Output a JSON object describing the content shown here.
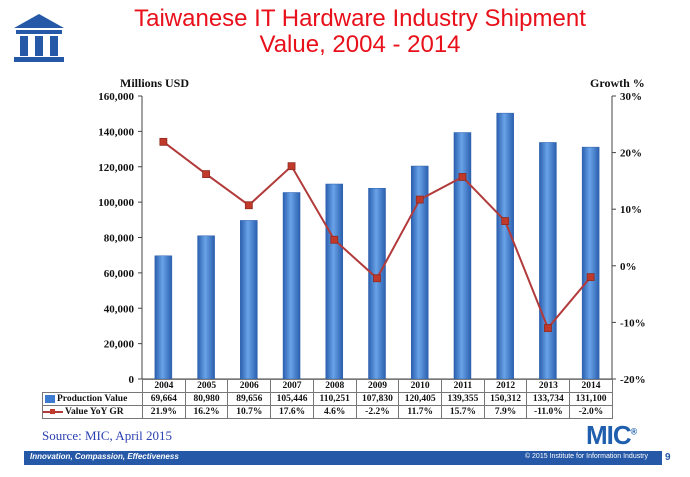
{
  "title_line1": "Taiwanese IT Hardware Industry Shipment",
  "title_line2": "Value, 2004 - 2014",
  "source": "Source: MIC, April 2015",
  "brand": "MIC",
  "brand_mark": "®",
  "footer": {
    "tagline": "Innovation, Compassion, Effectiveness",
    "copyright": "© 2015 Institute for Information Industry"
  },
  "page_number": "9",
  "colors": {
    "title": "#e8101a",
    "bar": "#3d7bd0",
    "line": "#b23a3a",
    "footer": "#2558a6"
  },
  "chart_data": {
    "type": "bar",
    "categories": [
      "2004",
      "2005",
      "2006",
      "2007",
      "2008",
      "2009",
      "2010",
      "2011",
      "2012",
      "2013",
      "2014"
    ],
    "ylabel": "Millions USD",
    "y2label": "Growth %",
    "ylim": [
      0,
      160000
    ],
    "y2lim": [
      -20,
      30
    ],
    "yticks": [
      "0",
      "20,000",
      "40,000",
      "60,000",
      "80,000",
      "100,000",
      "120,000",
      "140,000",
      "160,000"
    ],
    "y2ticks": [
      "-20%",
      "-10%",
      "0%",
      "10%",
      "20%",
      "30%"
    ],
    "series": [
      {
        "name": "Production Value",
        "type": "bar",
        "values": [
          69664,
          80980,
          89656,
          105446,
          110251,
          107830,
          120405,
          139355,
          150312,
          133734,
          131100
        ],
        "labels": [
          "69,664",
          "80,980",
          "89,656",
          "105,446",
          "110,251",
          "107,830",
          "120,405",
          "139,355",
          "150,312",
          "133,734",
          "131,100"
        ]
      },
      {
        "name": "Value YoY GR",
        "type": "line",
        "axis": "right",
        "values": [
          21.9,
          16.2,
          10.7,
          17.6,
          4.6,
          -2.2,
          11.7,
          15.7,
          7.9,
          -11.0,
          -2.0
        ],
        "labels": [
          "21.9%",
          "16.2%",
          "10.7%",
          "17.6%",
          "4.6%",
          "-2.2%",
          "11.7%",
          "15.7%",
          "7.9%",
          "-11.0%",
          "-2.0%"
        ]
      }
    ],
    "grid": false,
    "legend": "table-bottom"
  }
}
